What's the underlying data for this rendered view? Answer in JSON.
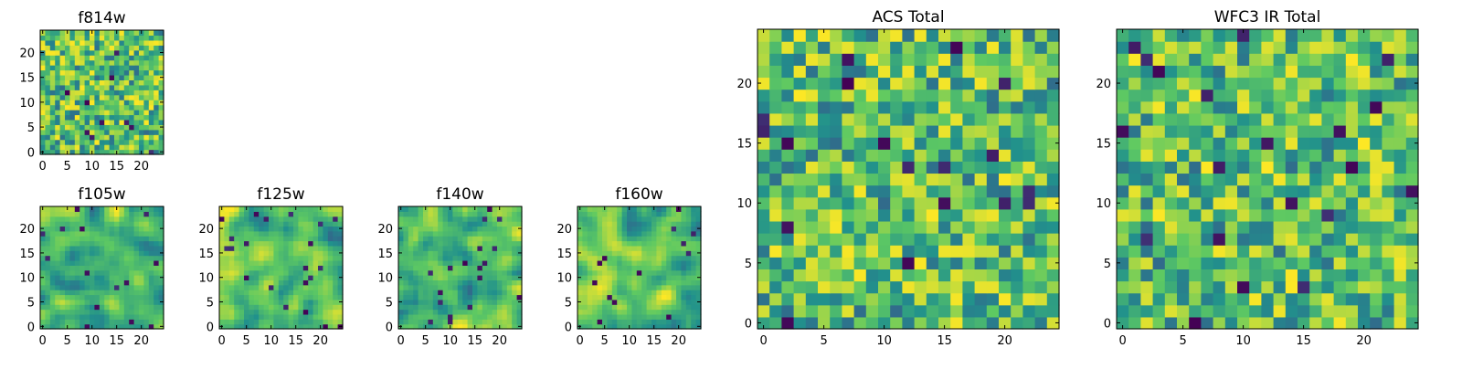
{
  "colormap": [
    "#440154",
    "#3b528b",
    "#21918c",
    "#5ec962",
    "#fde725"
  ],
  "chart_data": [
    {
      "id": "f814w",
      "type": "heatmap",
      "title": "f814w",
      "grid": [
        25,
        25
      ],
      "xlim": [
        -0.5,
        24.5
      ],
      "ylim": [
        -0.5,
        24.5
      ],
      "xticks": [
        0,
        5,
        10,
        15,
        20
      ],
      "yticks": [
        0,
        5,
        10,
        15,
        20
      ],
      "xtick_labels": [
        "0",
        "5",
        "10",
        "15",
        "20"
      ],
      "ytick_labels": [
        "0",
        "5",
        "10",
        "15",
        "20"
      ],
      "seed": 11,
      "smooth": 0
    },
    {
      "id": "f105w",
      "type": "heatmap",
      "title": "f105w",
      "grid": [
        25,
        25
      ],
      "xlim": [
        -0.5,
        24.5
      ],
      "ylim": [
        -0.5,
        24.5
      ],
      "xticks": [
        0,
        5,
        10,
        15,
        20
      ],
      "yticks": [
        0,
        5,
        10,
        15,
        20
      ],
      "xtick_labels": [
        "0",
        "5",
        "10",
        "15",
        "20"
      ],
      "ytick_labels": [
        "0",
        "5",
        "10",
        "15",
        "20"
      ],
      "seed": 23,
      "smooth": 2
    },
    {
      "id": "f125w",
      "type": "heatmap",
      "title": "f125w",
      "grid": [
        25,
        25
      ],
      "xlim": [
        -0.5,
        24.5
      ],
      "ylim": [
        -0.5,
        24.5
      ],
      "xticks": [
        0,
        5,
        10,
        15,
        20
      ],
      "yticks": [
        0,
        5,
        10,
        15,
        20
      ],
      "xtick_labels": [
        "0",
        "5",
        "10",
        "15",
        "20"
      ],
      "ytick_labels": [
        "0",
        "5",
        "10",
        "15",
        "20"
      ],
      "seed": 37,
      "smooth": 2
    },
    {
      "id": "f140w",
      "type": "heatmap",
      "title": "f140w",
      "grid": [
        25,
        25
      ],
      "xlim": [
        -0.5,
        24.5
      ],
      "ylim": [
        -0.5,
        24.5
      ],
      "xticks": [
        0,
        5,
        10,
        15,
        20
      ],
      "yticks": [
        0,
        5,
        10,
        15,
        20
      ],
      "xtick_labels": [
        "0",
        "5",
        "10",
        "15",
        "20"
      ],
      "ytick_labels": [
        "0",
        "5",
        "10",
        "15",
        "20"
      ],
      "seed": 41,
      "smooth": 2
    },
    {
      "id": "f160w",
      "type": "heatmap",
      "title": "f160w",
      "grid": [
        25,
        25
      ],
      "xlim": [
        -0.5,
        24.5
      ],
      "ylim": [
        -0.5,
        24.5
      ],
      "xticks": [
        0,
        5,
        10,
        15,
        20
      ],
      "yticks": [
        0,
        5,
        10,
        15,
        20
      ],
      "xtick_labels": [
        "0",
        "5",
        "10",
        "15",
        "20"
      ],
      "ytick_labels": [
        "0",
        "5",
        "10",
        "15",
        "20"
      ],
      "seed": 53,
      "smooth": 2
    },
    {
      "id": "acs_total",
      "type": "heatmap",
      "title": "ACS Total",
      "grid": [
        25,
        25
      ],
      "xlim": [
        -0.5,
        24.5
      ],
      "ylim": [
        -0.5,
        24.5
      ],
      "xticks": [
        0,
        5,
        10,
        15,
        20
      ],
      "yticks": [
        0,
        5,
        10,
        15,
        20
      ],
      "xtick_labels": [
        "0",
        "5",
        "10",
        "15",
        "20"
      ],
      "ytick_labels": [
        "0",
        "5",
        "10",
        "15",
        "20"
      ],
      "seed": 67,
      "smooth": 0
    },
    {
      "id": "wfc3_ir_total",
      "type": "heatmap",
      "title": "WFC3 IR Total",
      "grid": [
        25,
        25
      ],
      "xlim": [
        -0.5,
        24.5
      ],
      "ylim": [
        -0.5,
        24.5
      ],
      "xticks": [
        0,
        5,
        10,
        15,
        20
      ],
      "yticks": [
        0,
        5,
        10,
        15,
        20
      ],
      "xtick_labels": [
        "0",
        "5",
        "10",
        "15",
        "20"
      ],
      "ytick_labels": [
        "0",
        "5",
        "10",
        "15",
        "20"
      ],
      "seed": 79,
      "smooth": 0
    }
  ]
}
